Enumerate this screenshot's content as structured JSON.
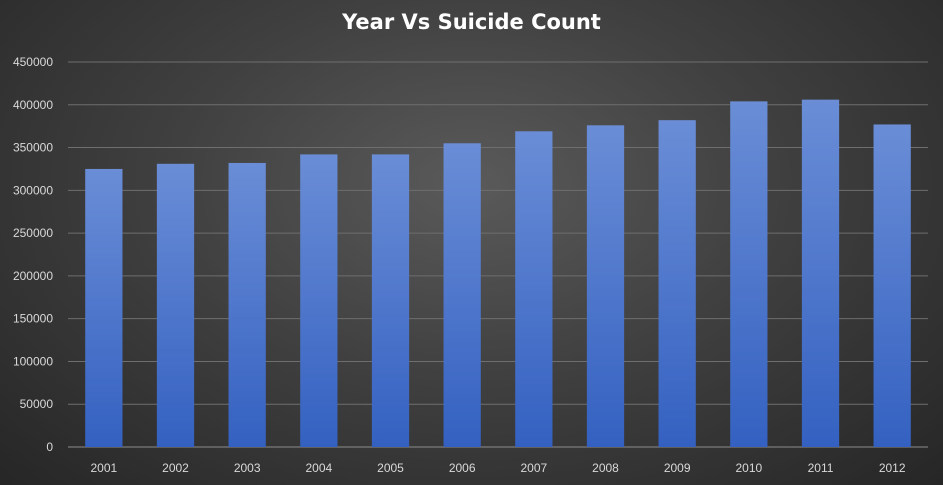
{
  "chart_data": {
    "type": "bar",
    "title": "Year Vs Suicide Count",
    "xlabel": "",
    "ylabel": "",
    "categories": [
      "2001",
      "2002",
      "2003",
      "2004",
      "2005",
      "2006",
      "2007",
      "2008",
      "2009",
      "2010",
      "2011",
      "2012"
    ],
    "values": [
      325000,
      331000,
      332000,
      342000,
      342000,
      355000,
      369000,
      376000,
      382000,
      404000,
      406000,
      377000
    ],
    "ylim": [
      0,
      450000
    ],
    "yticks": [
      "0",
      "50000",
      "100000",
      "150000",
      "200000",
      "250000",
      "300000",
      "350000",
      "400000",
      "450000"
    ],
    "grid": true,
    "legend": "none",
    "colors": {
      "bar_top": "#6a8dd6",
      "bar_bottom": "#3461c1"
    }
  }
}
